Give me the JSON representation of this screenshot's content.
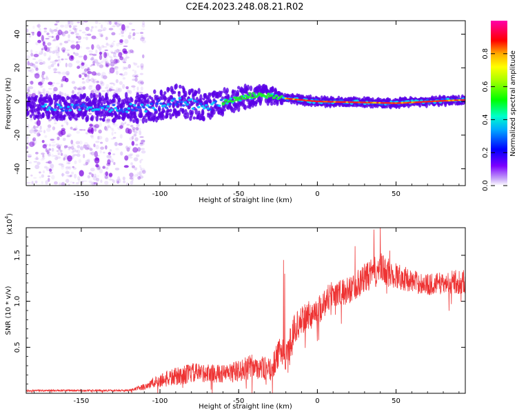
{
  "title": "C2E4.2023.248.08.21.R02",
  "colors": {
    "snr_line": "#ee3333",
    "spectro_core": "#ff2020",
    "spectro_mid": "#20ee20",
    "spectro_edge": "#5a00e6"
  },
  "colorbar": {
    "label": "Normalized spectral amplitude",
    "ticks": [
      "0.0",
      "0.2",
      "0.4",
      "0.6",
      "0.8"
    ],
    "tick_values": [
      0.0,
      0.2,
      0.4,
      0.6,
      0.8
    ],
    "range": [
      0,
      1
    ]
  },
  "chart_data": [
    {
      "type": "heatmap",
      "xlabel": "Height of straight line (km)",
      "ylabel": "Frequency (Hz)",
      "xlim": [
        -185,
        94
      ],
      "ylim": [
        -50,
        48
      ],
      "x_ticks": [
        -150,
        -100,
        -50,
        0,
        50
      ],
      "x_tick_labels": [
        "-150",
        "-100",
        "-50",
        "0",
        "50"
      ],
      "y_ticks": [
        40,
        20,
        0,
        -20,
        -40
      ],
      "y_tick_labels": [
        "40",
        "20",
        "0",
        "-20",
        "-40"
      ],
      "description_band": [
        {
          "x": -185,
          "center_hz": -3,
          "width_hz": 8
        },
        {
          "x": -110,
          "center_hz": -4,
          "width_hz": 10
        },
        {
          "x": -90,
          "center_hz": 0,
          "width_hz": 12
        },
        {
          "x": -70,
          "center_hz": -3,
          "width_hz": 10
        },
        {
          "x": -50,
          "center_hz": 2,
          "width_hz": 8
        },
        {
          "x": -35,
          "center_hz": 4,
          "width_hz": 7
        },
        {
          "x": -22,
          "center_hz": 2,
          "width_hz": 4
        },
        {
          "x": 0,
          "center_hz": 0,
          "width_hz": 4
        },
        {
          "x": 50,
          "center_hz": -1,
          "width_hz": 4
        },
        {
          "x": 94,
          "center_hz": 1,
          "width_hz": 4
        }
      ]
    },
    {
      "type": "line",
      "xlabel": "Height of straight line (km)",
      "ylabel": "SNR (10 * v/v)",
      "y_multiplier": "(x10",
      "y_multiplier_exp": "4",
      "y_multiplier_close": ")",
      "xlim": [
        -185,
        94
      ],
      "ylim": [
        0,
        1.8
      ],
      "x_ticks": [
        -150,
        -100,
        -50,
        0,
        50
      ],
      "x_tick_labels": [
        "-150",
        "-100",
        "-50",
        "0",
        "50"
      ],
      "y_ticks": [
        0.5,
        1.0,
        1.5
      ],
      "y_tick_labels": [
        "0.5",
        "1.0",
        "1.5"
      ],
      "series": [
        {
          "x": [
            -185,
            -150,
            -120,
            -112,
            -100,
            -90,
            -80,
            -70,
            -60,
            -50,
            -40,
            -30,
            -25,
            -22,
            -20,
            -15,
            -10,
            -5,
            0,
            5,
            10,
            15,
            20,
            30,
            40,
            50,
            60,
            70,
            80,
            94
          ],
          "y": [
            0.03,
            0.03,
            0.03,
            0.06,
            0.14,
            0.18,
            0.22,
            0.22,
            0.21,
            0.24,
            0.3,
            0.25,
            0.4,
            0.5,
            0.35,
            0.7,
            0.78,
            0.85,
            0.88,
            1.0,
            1.1,
            1.08,
            1.12,
            1.25,
            1.35,
            1.28,
            1.22,
            1.18,
            1.2,
            1.22
          ],
          "noise_amp": [
            0.01,
            0.01,
            0.01,
            0.03,
            0.08,
            0.1,
            0.11,
            0.1,
            0.1,
            0.12,
            0.14,
            0.12,
            0.16,
            0.18,
            0.18,
            0.16,
            0.16,
            0.16,
            0.16,
            0.16,
            0.16,
            0.15,
            0.15,
            0.16,
            0.18,
            0.15,
            0.12,
            0.12,
            0.12,
            0.14
          ],
          "spikes": [
            {
              "x": -21.5,
              "y": 1.45
            },
            {
              "x": -20.8,
              "y": 1.3
            },
            {
              "x": 36,
              "y": 1.78
            },
            {
              "x": 40,
              "y": 1.82
            },
            {
              "x": 24,
              "y": 1.6
            },
            {
              "x": 46,
              "y": 1.55
            }
          ]
        }
      ]
    }
  ]
}
